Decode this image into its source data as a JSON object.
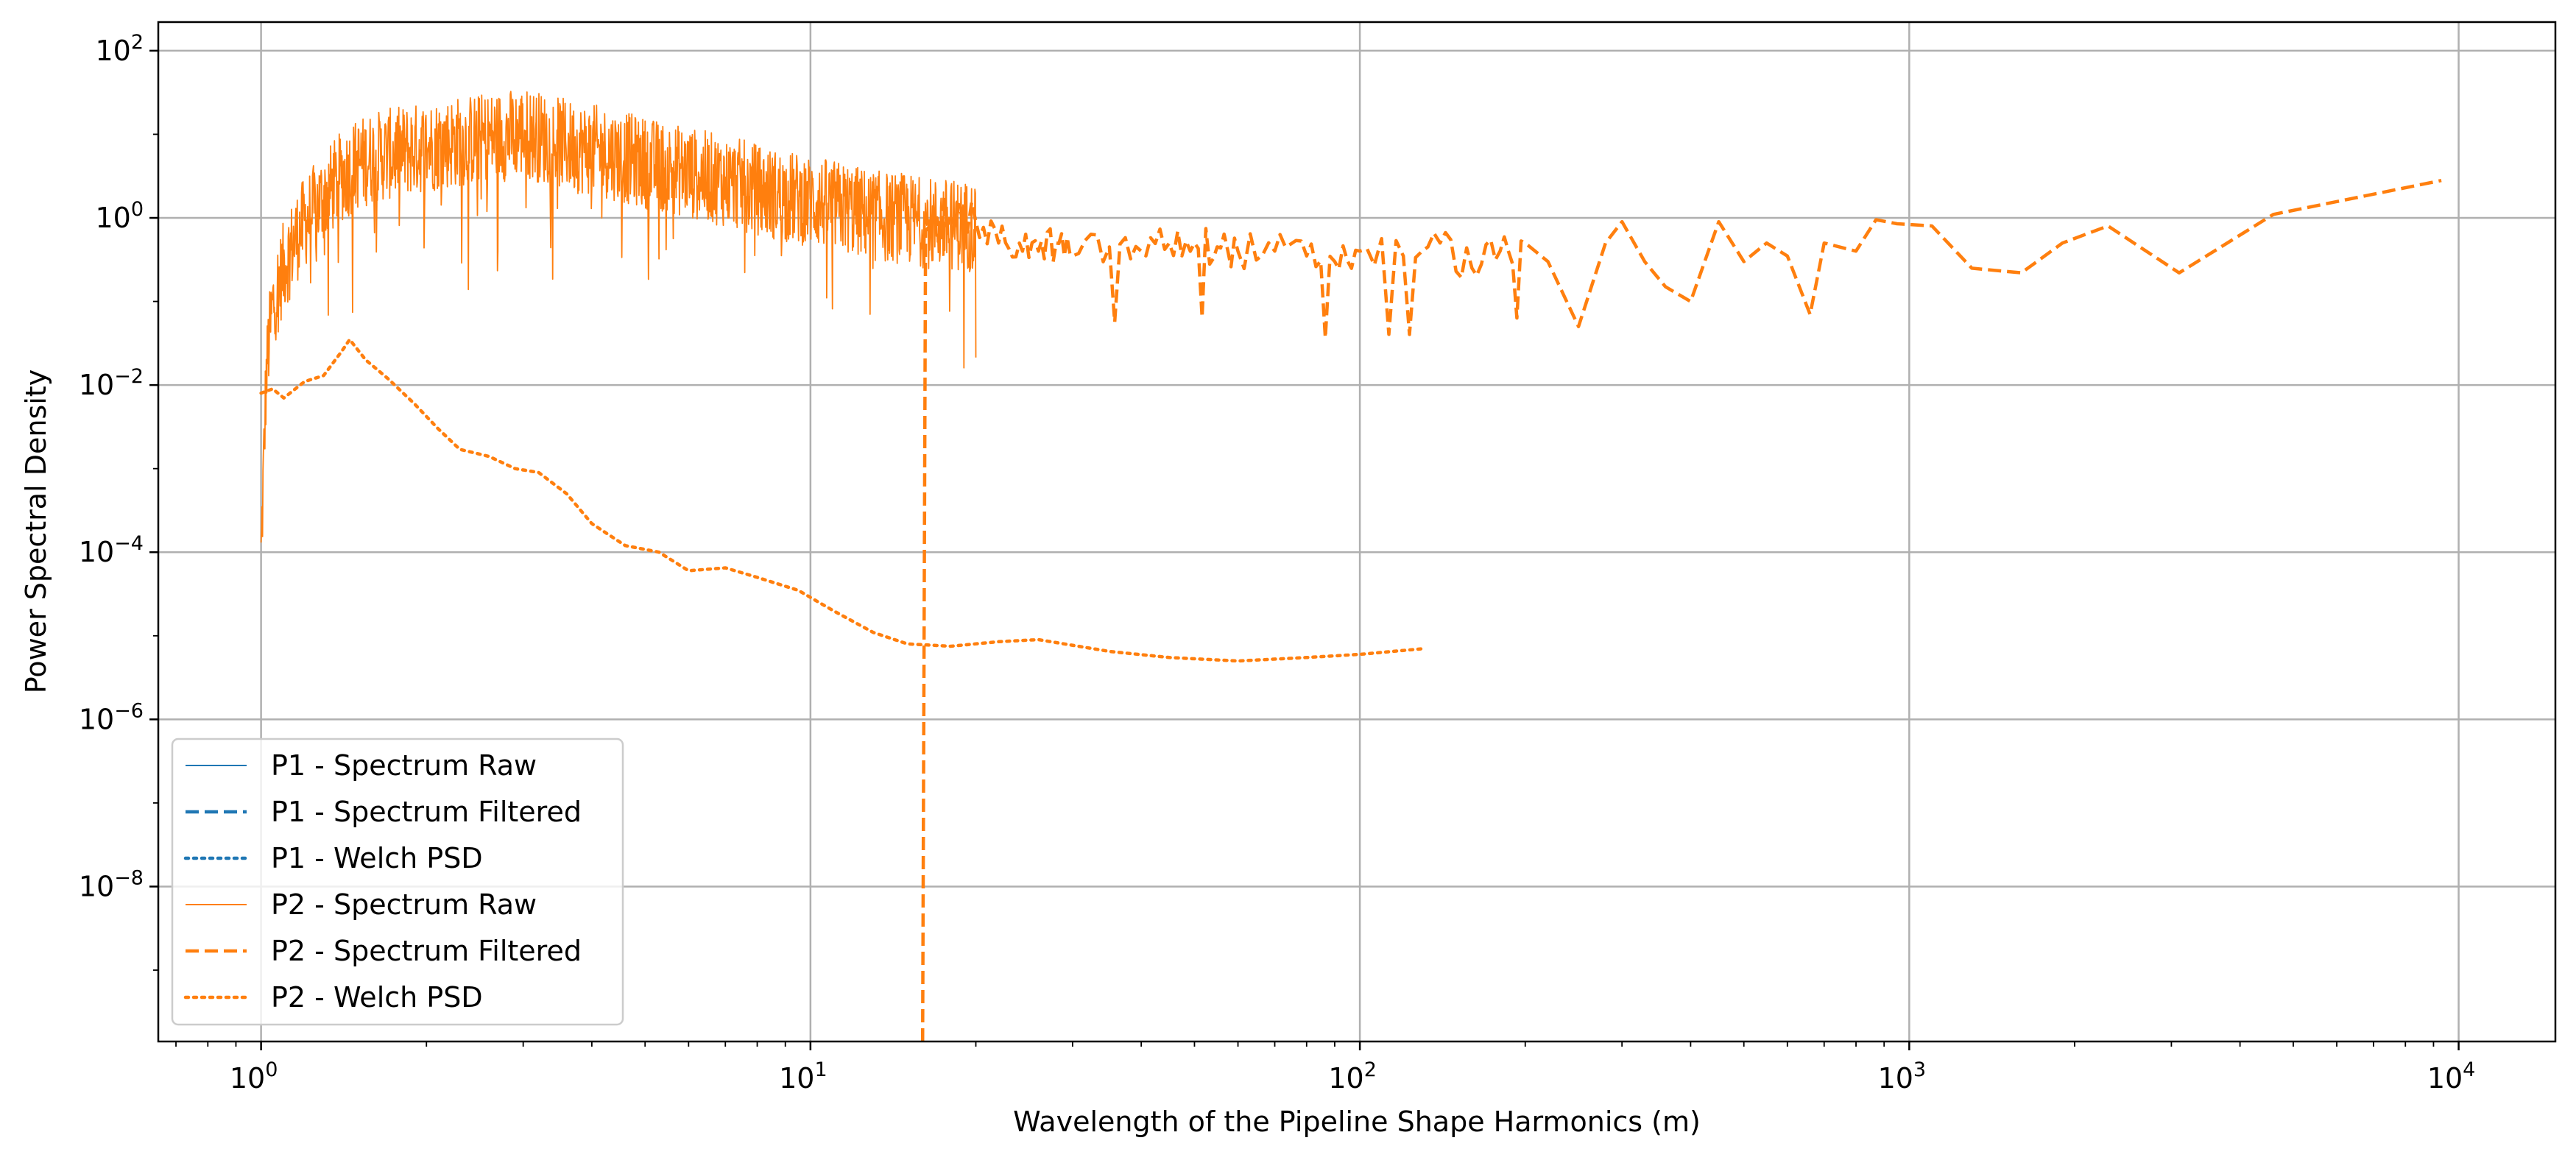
{
  "chart_data": {
    "type": "line",
    "title": "",
    "xlabel": "Wavelength of the Pipeline Shape Harmonics (m)",
    "ylabel": "Power Spectral Density",
    "xscale": "log",
    "yscale": "log",
    "xlim": [
      0.65,
      15000
    ],
    "ylim": [
      1.4e-10,
      220
    ],
    "grid": true,
    "legend_position": "lower-left",
    "x_ticks": [
      {
        "value": 1,
        "base": "10",
        "exp": "0"
      },
      {
        "value": 10,
        "base": "10",
        "exp": "1"
      },
      {
        "value": 100,
        "base": "10",
        "exp": "2"
      },
      {
        "value": 1000,
        "base": "10",
        "exp": "3"
      },
      {
        "value": 10000,
        "base": "10",
        "exp": "4"
      }
    ],
    "y_ticks": [
      {
        "value": 1e-08,
        "base": "10",
        "exp": "−8"
      },
      {
        "value": 1e-06,
        "base": "10",
        "exp": "−6"
      },
      {
        "value": 0.0001,
        "base": "10",
        "exp": "−4"
      },
      {
        "value": 0.01,
        "base": "10",
        "exp": "−2"
      },
      {
        "value": 1,
        "base": "10",
        "exp": "0"
      },
      {
        "value": 100,
        "base": "10",
        "exp": "2"
      }
    ],
    "series": [
      {
        "name": "P1 - Spectrum Raw",
        "color": "#1f77b4",
        "style": "solid",
        "x": [],
        "y": []
      },
      {
        "name": "P1 - Spectrum Filtered",
        "color": "#1f77b4",
        "style": "dashed",
        "x": [],
        "y": []
      },
      {
        "name": "P1 - Welch PSD",
        "color": "#1f77b4",
        "style": "dotted",
        "x": [],
        "y": []
      },
      {
        "name": "P2 - Spectrum Raw",
        "color": "#ff7f0e",
        "style": "solid",
        "x": [
          1.0,
          1.01,
          1.02,
          1.03,
          1.05,
          1.08,
          1.1,
          1.15,
          1.2,
          1.3,
          1.4,
          1.5,
          1.6,
          1.8,
          2.0,
          2.2,
          2.5,
          2.8,
          3.0,
          3.3,
          3.7,
          4.2,
          4.8,
          5.5,
          6.5,
          7.5,
          8.5,
          10,
          11.5,
          13,
          15,
          16,
          20
        ],
        "y": [
          0.0001,
          0.001,
          0.01,
          0.03,
          0.1,
          0.2,
          0.3,
          0.6,
          1.0,
          2.0,
          3.5,
          5,
          6,
          7,
          8,
          9,
          10,
          11,
          12,
          10,
          8,
          7,
          5.5,
          4.5,
          3.5,
          2.8,
          2.2,
          1.8,
          1.5,
          1.2,
          1.1,
          1.0,
          0.9
        ]
      },
      {
        "name": "P2 - Spectrum Filtered",
        "color": "#ff7f0e",
        "style": "dashed",
        "x": [
          16,
          16.2,
          17,
          18,
          20,
          22,
          24,
          26,
          28,
          30,
          35,
          40,
          45,
          50,
          55,
          60,
          70,
          80,
          90,
          100,
          120,
          140,
          160,
          180,
          200,
          220,
          250,
          280,
          300,
          330,
          360,
          400,
          450,
          500,
          550,
          600,
          660,
          700,
          800,
          870,
          950,
          1100,
          1300,
          1600,
          1900,
          2300,
          3100,
          4600,
          9300
        ],
        "y": [
          1.4e-10,
          0.7,
          1.0,
          1.1,
          0.9,
          0.5,
          0.5,
          0.4,
          0.5,
          0.35,
          0.45,
          0.4,
          0.5,
          0.5,
          0.45,
          0.4,
          0.4,
          0.35,
          0.3,
          0.4,
          0.35,
          0.5,
          0.25,
          0.4,
          0.5,
          0.3,
          0.05,
          0.5,
          0.9,
          0.3,
          0.15,
          0.1,
          0.9,
          0.3,
          0.5,
          0.35,
          0.07,
          0.5,
          0.4,
          0.95,
          0.85,
          0.8,
          0.25,
          0.22,
          0.5,
          0.8,
          0.22,
          1.1,
          2.8
        ]
      },
      {
        "name": "P2 - Welch PSD",
        "color": "#ff7f0e",
        "style": "dotted",
        "x": [
          1.0,
          1.05,
          1.1,
          1.2,
          1.3,
          1.4,
          1.45,
          1.55,
          1.7,
          1.9,
          2.1,
          2.3,
          2.6,
          2.9,
          3.2,
          3.6,
          4.0,
          4.6,
          5.3,
          6.0,
          7.0,
          8.0,
          9.5,
          11,
          13,
          15,
          18,
          22,
          26,
          35,
          45,
          60,
          80,
          100,
          130
        ],
        "y": [
          0.008,
          0.009,
          0.007,
          0.011,
          0.013,
          0.025,
          0.035,
          0.02,
          0.012,
          0.006,
          0.003,
          0.0017,
          0.0014,
          0.001,
          0.0009,
          0.0005,
          0.00022,
          0.00012,
          0.0001,
          6e-05,
          6.5e-05,
          5e-05,
          3.5e-05,
          2e-05,
          1.1e-05,
          8e-06,
          7.5e-06,
          8.5e-06,
          9e-06,
          6.5e-06,
          5.5e-06,
          5e-06,
          5.5e-06,
          6e-06,
          7e-06
        ]
      }
    ]
  }
}
